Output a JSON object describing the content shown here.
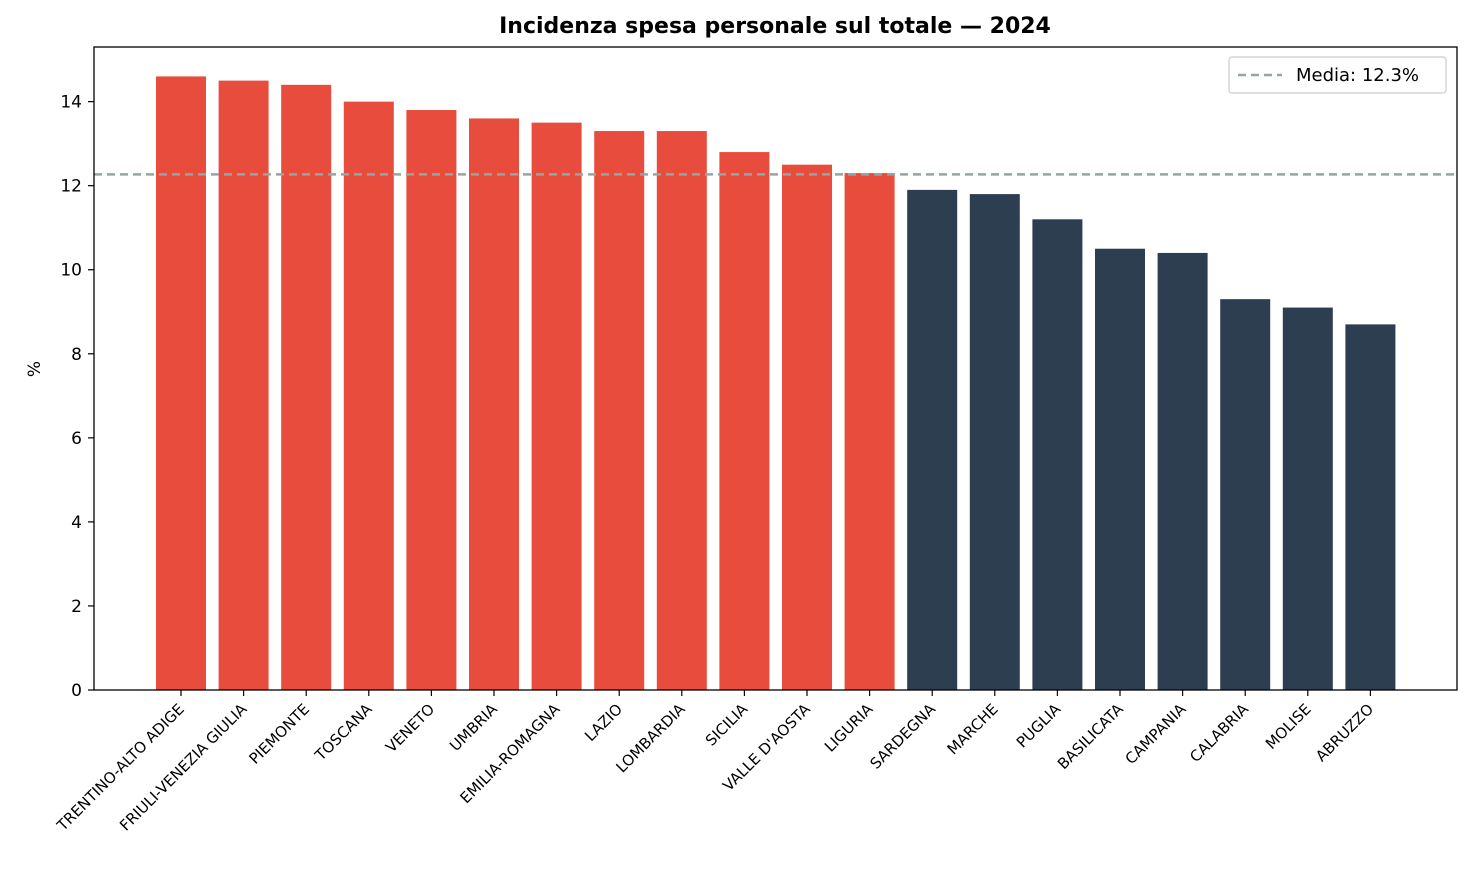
{
  "chart_data": {
    "type": "bar",
    "title": "Incidenza spesa personale sul totale — 2024",
    "xlabel": "",
    "ylabel": "%",
    "ylim": [
      0,
      15.3
    ],
    "yticks": [
      0,
      2,
      4,
      6,
      8,
      10,
      12,
      14
    ],
    "grid": false,
    "legend_position": "top-right",
    "categories": [
      "TRENTINO-ALTO ADIGE",
      "FRIULI-VENEZIA GIULIA",
      "PIEMONTE",
      "TOSCANA",
      "VENETO",
      "UMBRIA",
      "EMILIA-ROMAGNA",
      "LAZIO",
      "LOMBARDIA",
      "SICILIA",
      "VALLE D'AOSTA",
      "LIGURIA",
      "SARDEGNA",
      "MARCHE",
      "PUGLIA",
      "BASILICATA",
      "CAMPANIA",
      "CALABRIA",
      "MOLISE",
      "ABRUZZO"
    ],
    "values": [
      14.6,
      14.5,
      14.4,
      14.0,
      13.8,
      13.6,
      13.5,
      13.3,
      13.3,
      12.8,
      12.5,
      12.3,
      11.9,
      11.8,
      11.2,
      10.5,
      10.4,
      9.3,
      9.1,
      8.7
    ],
    "mean_line": {
      "value": 12.27,
      "label": "Media: 12.3%",
      "color": "#95a5a6"
    },
    "colors": {
      "above_mean": "#e74c3c",
      "below_mean": "#2c3e50"
    }
  }
}
